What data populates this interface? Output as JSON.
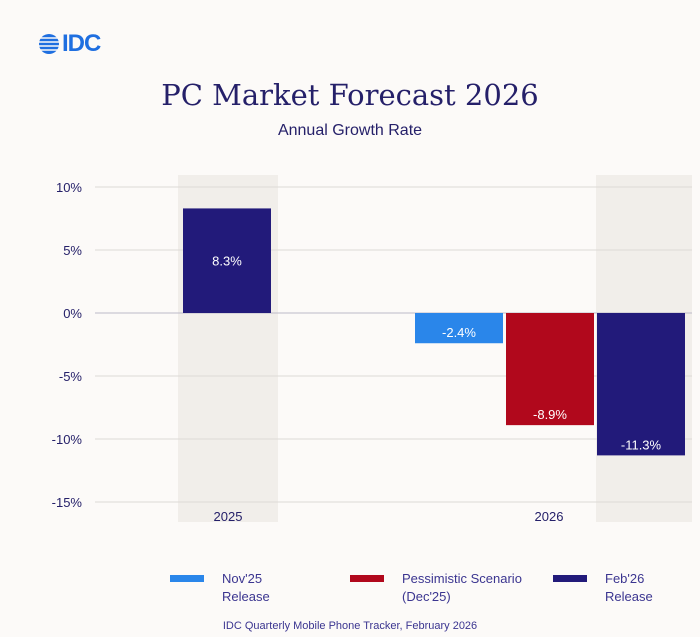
{
  "logo": "IDC",
  "colors": {
    "nov25": "#2a86ea",
    "pessimistic": "#b1081c",
    "feb26": "#221a7a",
    "band": "#f1eeea",
    "grid": "#dddad6",
    "text": "#252069"
  },
  "chart_data": {
    "type": "bar",
    "title": "PC Market Forecast 2026",
    "subtitle": "Annual Growth Rate",
    "categories": [
      "2025",
      "2026"
    ],
    "yticks": [
      "10%",
      "5%",
      "0%",
      "-5%",
      "-10%",
      "-15%"
    ],
    "ylim": [
      -15,
      10
    ],
    "grid": true,
    "legend_position": "bottom",
    "series": [
      {
        "name": "Nov'25 Release",
        "values": [
          null,
          -2.4
        ],
        "labels": [
          "",
          "-2.4%"
        ]
      },
      {
        "name": "Pessimistic Scenario (Dec'25)",
        "values": [
          null,
          -8.9
        ],
        "labels": [
          "",
          "-8.9%"
        ]
      },
      {
        "name": "Feb'26 Release",
        "values": [
          8.3,
          -11.3
        ],
        "labels": [
          "8.3%",
          "-11.3%"
        ]
      }
    ],
    "legend": [
      {
        "line1": "Nov'25",
        "line2": "Release"
      },
      {
        "line1": "Pessimistic Scenario",
        "line2": "(Dec'25)"
      },
      {
        "line1": "Feb'26",
        "line2": "Release"
      }
    ],
    "source": "IDC Quarterly Mobile Phone Tracker, February 2026"
  }
}
